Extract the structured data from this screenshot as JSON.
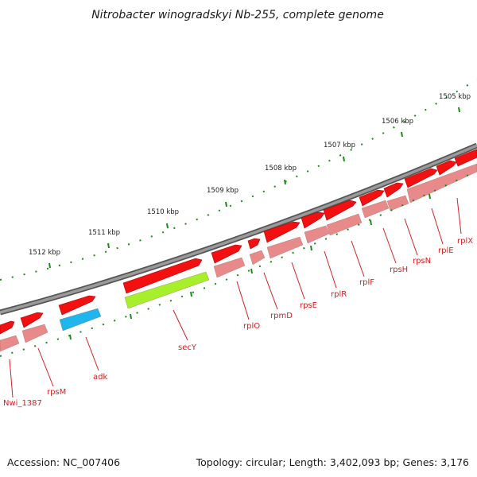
{
  "title": "Nitrobacter winogradskyi Nb-255, complete genome",
  "footer": {
    "accession": "Accession: NC_007406",
    "summary": "Topology: circular; Length: 3,402,093 bp; Genes: 3,176"
  },
  "colors": {
    "backbone": "#777777",
    "tick": "#1a8a1a",
    "gene_red": "#f21010",
    "gene_pink": "#e98a8a",
    "gene_blue": "#1fb6ee",
    "gene_green": "#a6ef2a",
    "label": "#d62020"
  },
  "scale_labels": [
    {
      "text": "1512 kbp"
    },
    {
      "text": "1511 kbp"
    },
    {
      "text": "1510 kbp"
    },
    {
      "text": "1509 kbp"
    },
    {
      "text": "1508 kbp"
    },
    {
      "text": "1507 kbp"
    },
    {
      "text": "1506 kbp"
    },
    {
      "text": "1505 kbp"
    }
  ],
  "gene_labels": [
    {
      "name": "Nwi_1387"
    },
    {
      "name": "rpsM"
    },
    {
      "name": "adk"
    },
    {
      "name": "secY"
    },
    {
      "name": "rplO"
    },
    {
      "name": "rpmD"
    },
    {
      "name": "rpsE"
    },
    {
      "name": "rplR"
    },
    {
      "name": "rplF"
    },
    {
      "name": "rpsH"
    },
    {
      "name": "rpsN"
    },
    {
      "name": "rplE"
    },
    {
      "name": "rplX"
    }
  ]
}
